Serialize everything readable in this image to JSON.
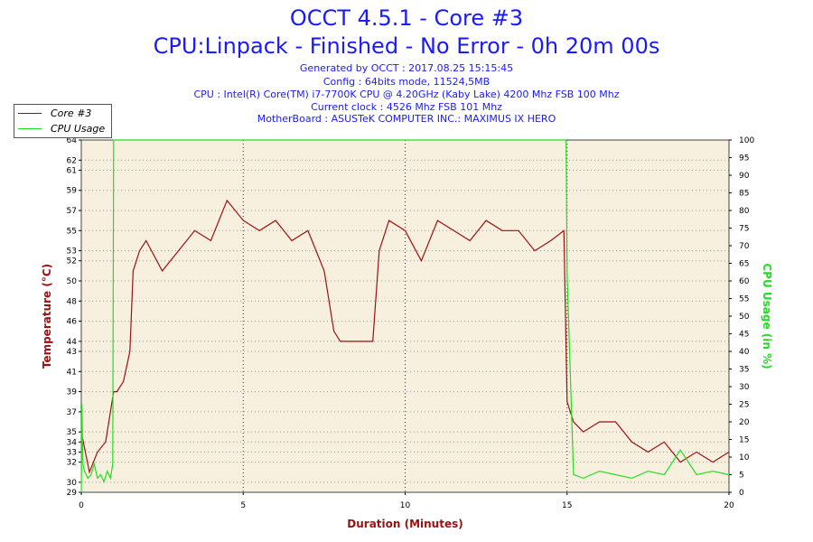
{
  "header": {
    "title_line1": "OCCT 4.5.1 - Core #3",
    "title_line2": "CPU:Linpack - Finished - No Error - 0h 20m 00s",
    "generated": "Generated by OCCT : 2017.08.25 15:15:45",
    "config": "Config : 64bits mode, 11524,5MB",
    "cpu": "CPU : Intel(R) Core(TM) i7-7700K CPU @ 4.20GHz (Kaby Lake) 4200 Mhz FSB 100 Mhz",
    "clock": "Current clock : 4526 Mhz FSB 101 Mhz",
    "motherboard": "MotherBoard : ASUSTeK COMPUTER INC.: MAXIMUS IX HERO"
  },
  "colors": {
    "temp": "#9b1111",
    "cpu": "#22dd22",
    "plot_bg": "#f8f0de",
    "title": "#1a1aff"
  },
  "chart_data": {
    "type": "line",
    "xlabel": "Duration (Minutes)",
    "ylabel_left": "Temperature (°C)",
    "ylabel_right": "CPU Usage (in %)",
    "xlim": [
      0,
      20
    ],
    "ylim_left": [
      29,
      64
    ],
    "ylim_right": [
      0,
      100
    ],
    "x_ticks": [
      0,
      5,
      10,
      15,
      20
    ],
    "y_left_ticks": [
      29,
      30,
      32,
      33,
      34,
      35,
      37,
      39,
      41,
      43,
      44,
      46,
      48,
      50,
      52,
      53,
      55,
      57,
      59,
      61,
      62,
      64
    ],
    "y_right_ticks": [
      0,
      5,
      10,
      15,
      20,
      25,
      30,
      35,
      40,
      45,
      50,
      55,
      60,
      65,
      70,
      75,
      80,
      85,
      90,
      95,
      100
    ],
    "grid": true,
    "legend_position": "top-left",
    "series": [
      {
        "name": "Core #3",
        "axis": "left",
        "x": [
          0,
          0.25,
          0.5,
          0.75,
          1.0,
          1.1,
          1.3,
          1.5,
          1.6,
          1.8,
          2.0,
          2.5,
          3.0,
          3.5,
          4.0,
          4.5,
          5.0,
          5.5,
          6.0,
          6.5,
          7.0,
          7.5,
          7.8,
          8.0,
          8.5,
          9.0,
          9.2,
          9.5,
          10.0,
          10.5,
          11.0,
          11.5,
          12.0,
          12.5,
          13.0,
          13.5,
          14.0,
          14.5,
          14.9,
          15.0,
          15.2,
          15.5,
          16.0,
          16.5,
          17.0,
          17.5,
          18.0,
          18.5,
          19.0,
          19.5,
          20.0
        ],
        "y": [
          35,
          31,
          33,
          34,
          39,
          39,
          40,
          43,
          51,
          53,
          54,
          51,
          53,
          55,
          54,
          58,
          56,
          55,
          56,
          54,
          55,
          51,
          45,
          44,
          44,
          44,
          53,
          56,
          55,
          52,
          56,
          55,
          54,
          56,
          55,
          55,
          53,
          54,
          55,
          38,
          36,
          35,
          36,
          36,
          34,
          33,
          34,
          32,
          33,
          32,
          33
        ]
      },
      {
        "name": "CPU Usage",
        "axis": "right",
        "x": [
          0,
          0.02,
          0.05,
          0.1,
          0.2,
          0.3,
          0.4,
          0.5,
          0.6,
          0.7,
          0.8,
          0.9,
          0.97,
          1.0,
          14.97,
          15.0,
          15.2,
          15.5,
          16.0,
          16.5,
          17.0,
          17.5,
          18.0,
          18.5,
          19.0,
          19.5,
          20.0
        ],
        "y": [
          0,
          25,
          8,
          6,
          4,
          5,
          8,
          4,
          5,
          3,
          6,
          4,
          8,
          100,
          100,
          62,
          5,
          4,
          6,
          5,
          4,
          6,
          5,
          12,
          5,
          6,
          5
        ]
      }
    ]
  }
}
